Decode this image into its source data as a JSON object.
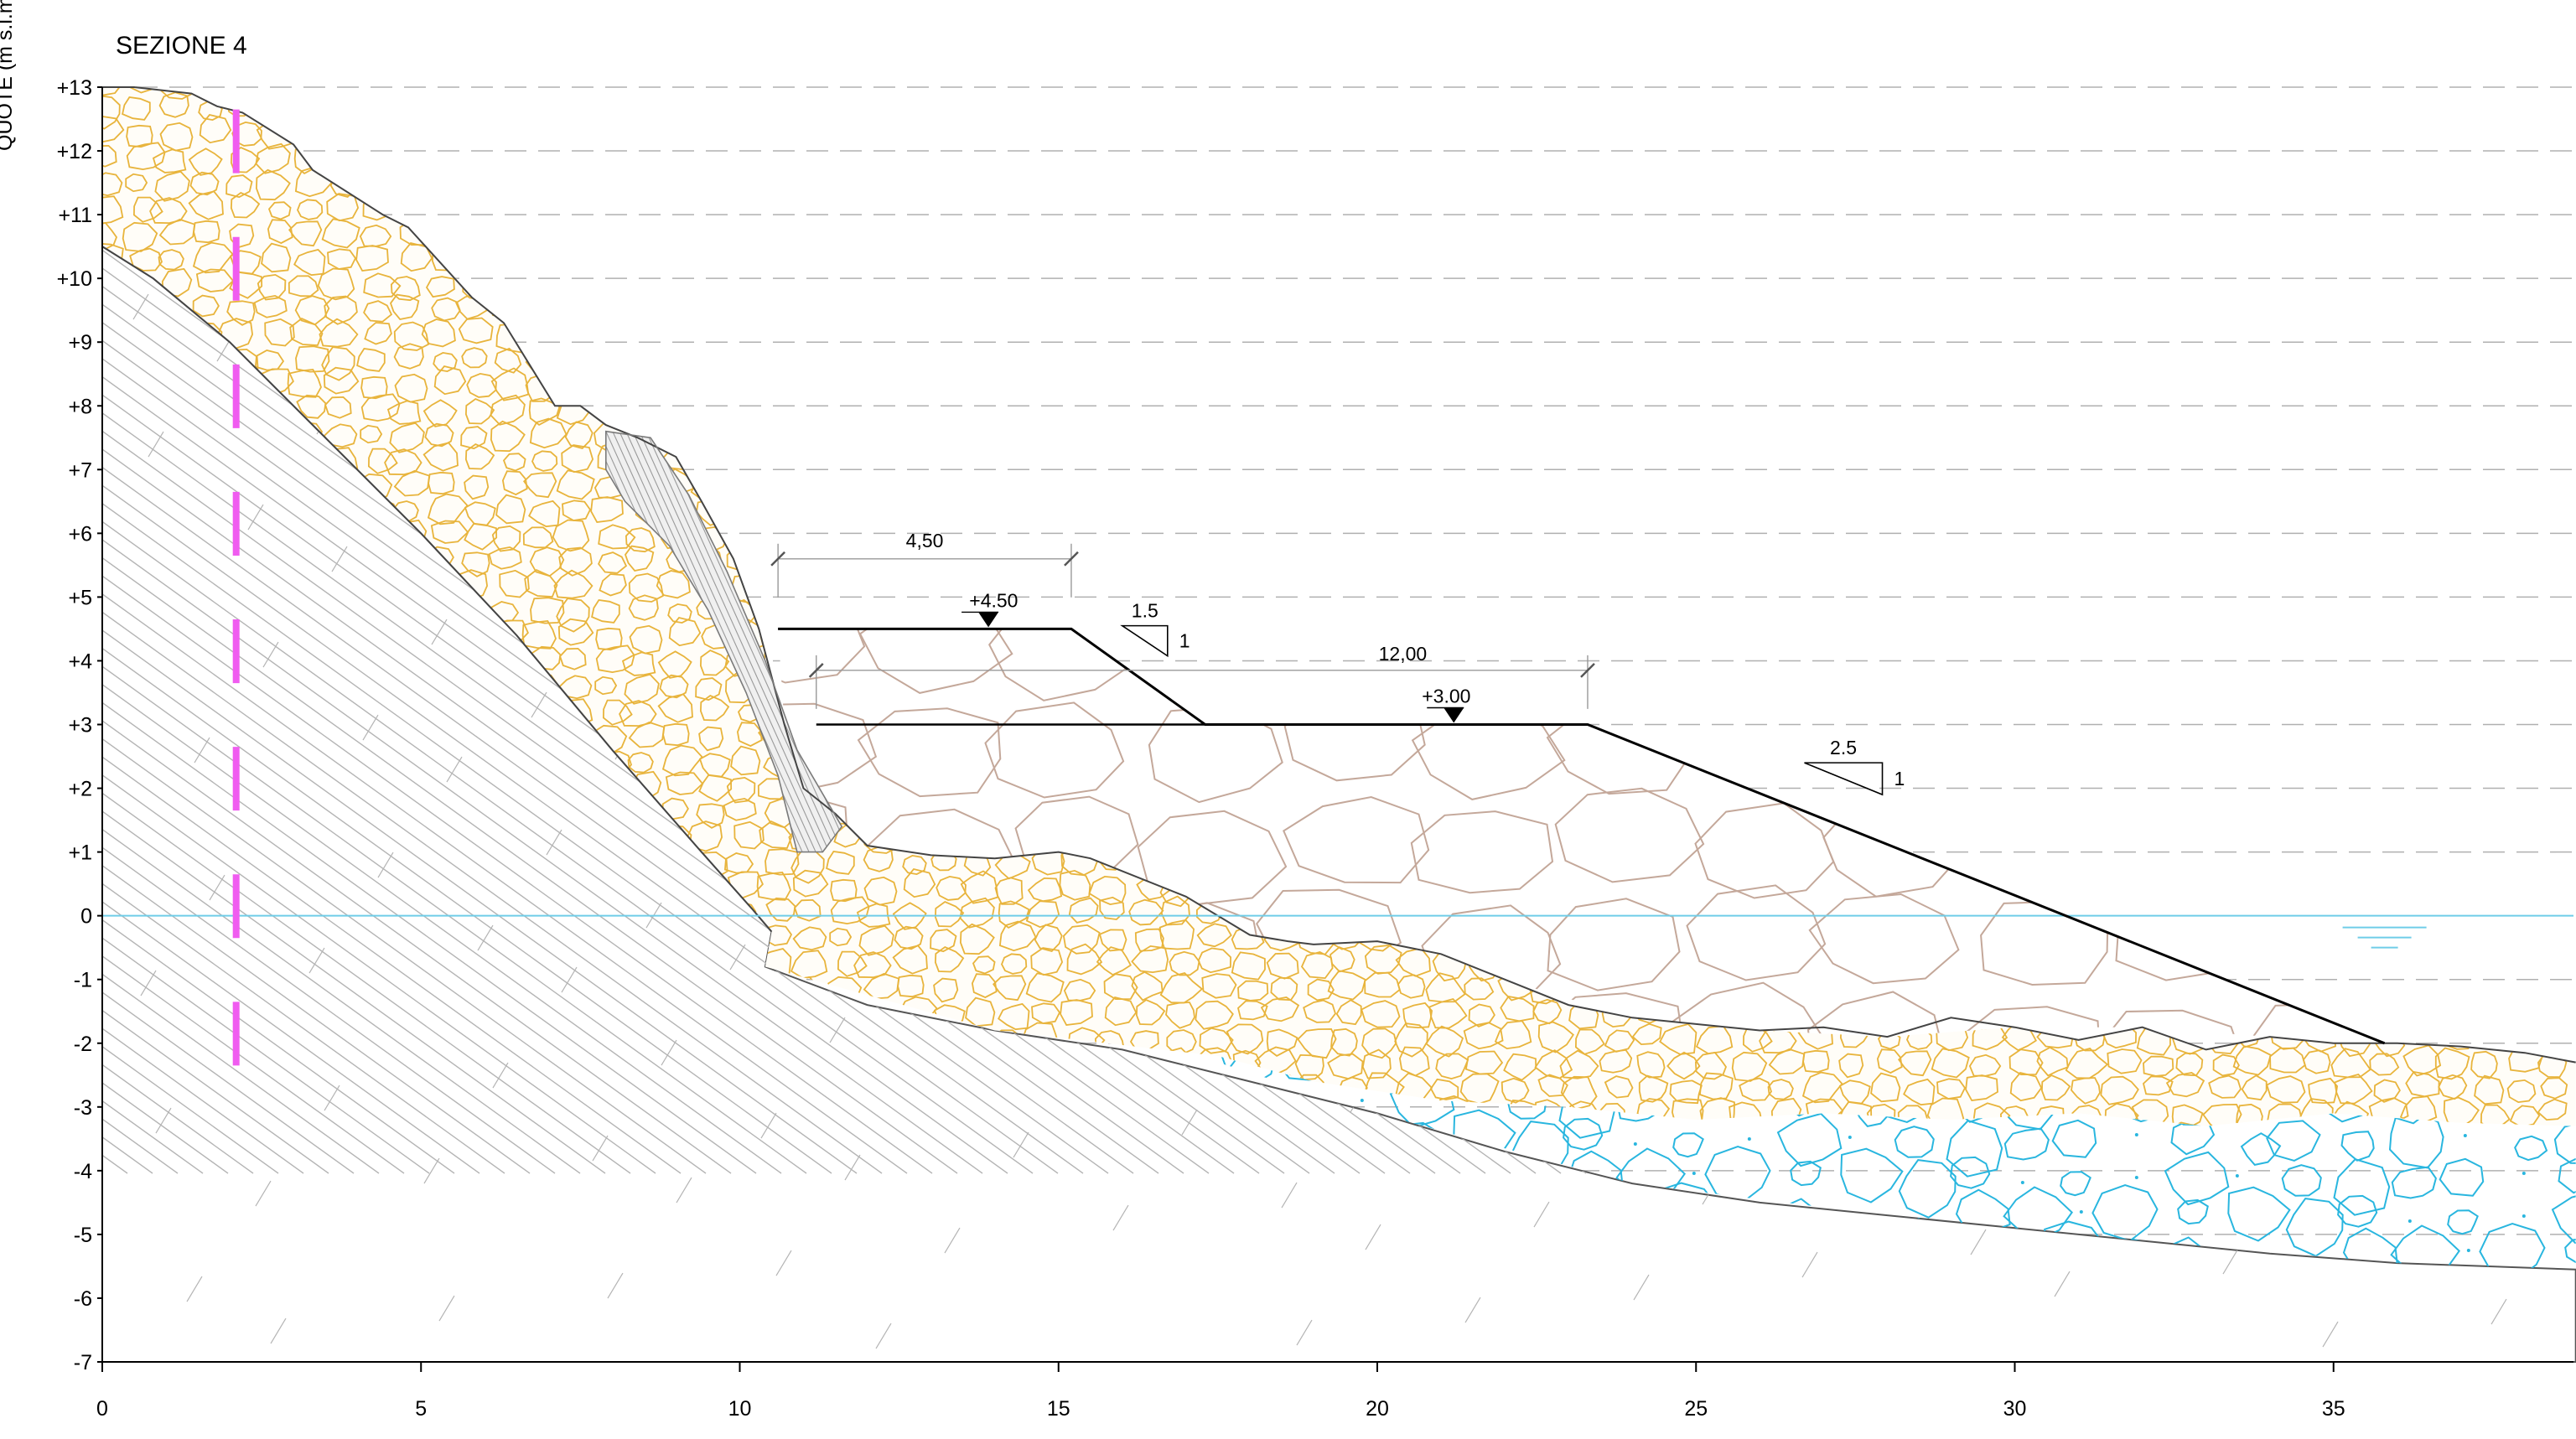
{
  "drawing": {
    "title": "SEZIONE 4",
    "vertical_axis_caption": "QUOTE (m s.l.m.)",
    "y_ticks": [
      "+13",
      "+12",
      "+11",
      "+10",
      "+9",
      "+8",
      "+7",
      "+6",
      "+5",
      "+4",
      "+3",
      "+2",
      "+1",
      "0",
      "-1",
      "-2",
      "-3",
      "-4",
      "-5",
      "-6",
      "-7"
    ],
    "x_ticks": [
      "0",
      "5",
      "10",
      "15",
      "20",
      "25",
      "30",
      "35"
    ],
    "y_range": [
      -7,
      13
    ],
    "x_range": [
      0,
      38.8
    ],
    "levels": {
      "top_berm": "+4.50",
      "lower_berm": "+3.00"
    },
    "dimensions": {
      "top_width": "4,50",
      "berm_width": "12,00"
    },
    "slopes": {
      "upper": {
        "h": "1.5",
        "v": "1"
      },
      "outer": {
        "h": "2.5",
        "v": "1"
      }
    },
    "water_level": 0,
    "colors": {
      "gravel": "#e8b43c",
      "blocks": "#c4a89a",
      "submerged": "#29b6df",
      "rock": "#b4b4b4",
      "marker": "#f05cf0",
      "water": "#6fcde8",
      "grid": "#b0b0b0"
    },
    "icons": [
      "level-triangle-icon",
      "water-level-symbol-icon",
      "slope-triangle-icon"
    ]
  }
}
